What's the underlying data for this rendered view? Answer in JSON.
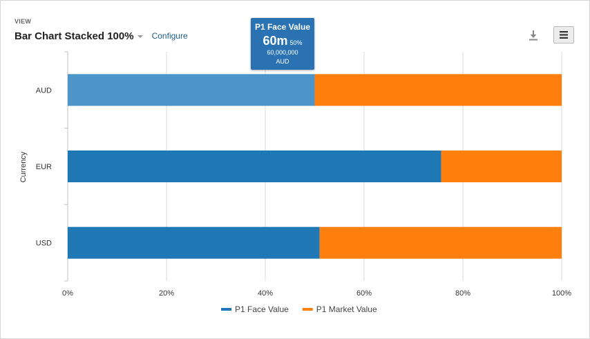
{
  "header": {
    "view_label": "VIEW",
    "title": "Bar Chart Stacked 100%",
    "configure_label": "Configure",
    "download_icon": "download-icon",
    "menu_icon": "hamburger-menu-icon"
  },
  "tooltip": {
    "series": "P1 Face Value",
    "value_short": "60m",
    "percent": "50%",
    "value_full": "60,000,000",
    "category": "AUD"
  },
  "chart_data": {
    "type": "bar",
    "orientation": "horizontal",
    "stacking": "percent",
    "categories": [
      "AUD",
      "EUR",
      "USD"
    ],
    "series": [
      {
        "name": "P1 Face Value",
        "color": "#1f77b4",
        "values": [
          50,
          75.6,
          51
        ]
      },
      {
        "name": "P1 Market Value",
        "color": "#ff7f0e",
        "values": [
          50,
          24.4,
          49
        ]
      }
    ],
    "hover_color": "#4c95c8",
    "highlighted": {
      "category": "AUD",
      "series": "P1 Face Value"
    },
    "ylabel": "Currency",
    "xlim": [
      0,
      100
    ],
    "xticks": [
      "0%",
      "20%",
      "40%",
      "60%",
      "80%",
      "100%"
    ],
    "grid": true,
    "legend_position": "bottom"
  }
}
